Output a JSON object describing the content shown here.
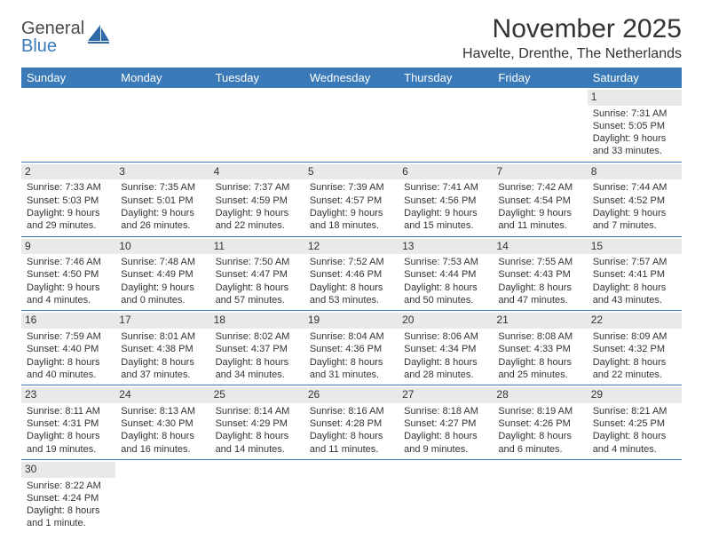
{
  "logo": {
    "text1": "General",
    "text2": "Blue"
  },
  "title": "November 2025",
  "location": "Havelte, Drenthe, The Netherlands",
  "colors": {
    "header_bg": "#3a7ab8",
    "header_text": "#ffffff",
    "daynum_bg": "#e9e9e9",
    "border": "#3a7ab8",
    "text": "#333333",
    "logo_gray": "#4a4a4a",
    "logo_blue": "#3a7ab8"
  },
  "daysOfWeek": [
    "Sunday",
    "Monday",
    "Tuesday",
    "Wednesday",
    "Thursday",
    "Friday",
    "Saturday"
  ],
  "weeks": [
    [
      null,
      null,
      null,
      null,
      null,
      null,
      {
        "n": "1",
        "sr": "Sunrise: 7:31 AM",
        "ss": "Sunset: 5:05 PM",
        "d1": "Daylight: 9 hours",
        "d2": "and 33 minutes."
      }
    ],
    [
      {
        "n": "2",
        "sr": "Sunrise: 7:33 AM",
        "ss": "Sunset: 5:03 PM",
        "d1": "Daylight: 9 hours",
        "d2": "and 29 minutes."
      },
      {
        "n": "3",
        "sr": "Sunrise: 7:35 AM",
        "ss": "Sunset: 5:01 PM",
        "d1": "Daylight: 9 hours",
        "d2": "and 26 minutes."
      },
      {
        "n": "4",
        "sr": "Sunrise: 7:37 AM",
        "ss": "Sunset: 4:59 PM",
        "d1": "Daylight: 9 hours",
        "d2": "and 22 minutes."
      },
      {
        "n": "5",
        "sr": "Sunrise: 7:39 AM",
        "ss": "Sunset: 4:57 PM",
        "d1": "Daylight: 9 hours",
        "d2": "and 18 minutes."
      },
      {
        "n": "6",
        "sr": "Sunrise: 7:41 AM",
        "ss": "Sunset: 4:56 PM",
        "d1": "Daylight: 9 hours",
        "d2": "and 15 minutes."
      },
      {
        "n": "7",
        "sr": "Sunrise: 7:42 AM",
        "ss": "Sunset: 4:54 PM",
        "d1": "Daylight: 9 hours",
        "d2": "and 11 minutes."
      },
      {
        "n": "8",
        "sr": "Sunrise: 7:44 AM",
        "ss": "Sunset: 4:52 PM",
        "d1": "Daylight: 9 hours",
        "d2": "and 7 minutes."
      }
    ],
    [
      {
        "n": "9",
        "sr": "Sunrise: 7:46 AM",
        "ss": "Sunset: 4:50 PM",
        "d1": "Daylight: 9 hours",
        "d2": "and 4 minutes."
      },
      {
        "n": "10",
        "sr": "Sunrise: 7:48 AM",
        "ss": "Sunset: 4:49 PM",
        "d1": "Daylight: 9 hours",
        "d2": "and 0 minutes."
      },
      {
        "n": "11",
        "sr": "Sunrise: 7:50 AM",
        "ss": "Sunset: 4:47 PM",
        "d1": "Daylight: 8 hours",
        "d2": "and 57 minutes."
      },
      {
        "n": "12",
        "sr": "Sunrise: 7:52 AM",
        "ss": "Sunset: 4:46 PM",
        "d1": "Daylight: 8 hours",
        "d2": "and 53 minutes."
      },
      {
        "n": "13",
        "sr": "Sunrise: 7:53 AM",
        "ss": "Sunset: 4:44 PM",
        "d1": "Daylight: 8 hours",
        "d2": "and 50 minutes."
      },
      {
        "n": "14",
        "sr": "Sunrise: 7:55 AM",
        "ss": "Sunset: 4:43 PM",
        "d1": "Daylight: 8 hours",
        "d2": "and 47 minutes."
      },
      {
        "n": "15",
        "sr": "Sunrise: 7:57 AM",
        "ss": "Sunset: 4:41 PM",
        "d1": "Daylight: 8 hours",
        "d2": "and 43 minutes."
      }
    ],
    [
      {
        "n": "16",
        "sr": "Sunrise: 7:59 AM",
        "ss": "Sunset: 4:40 PM",
        "d1": "Daylight: 8 hours",
        "d2": "and 40 minutes."
      },
      {
        "n": "17",
        "sr": "Sunrise: 8:01 AM",
        "ss": "Sunset: 4:38 PM",
        "d1": "Daylight: 8 hours",
        "d2": "and 37 minutes."
      },
      {
        "n": "18",
        "sr": "Sunrise: 8:02 AM",
        "ss": "Sunset: 4:37 PM",
        "d1": "Daylight: 8 hours",
        "d2": "and 34 minutes."
      },
      {
        "n": "19",
        "sr": "Sunrise: 8:04 AM",
        "ss": "Sunset: 4:36 PM",
        "d1": "Daylight: 8 hours",
        "d2": "and 31 minutes."
      },
      {
        "n": "20",
        "sr": "Sunrise: 8:06 AM",
        "ss": "Sunset: 4:34 PM",
        "d1": "Daylight: 8 hours",
        "d2": "and 28 minutes."
      },
      {
        "n": "21",
        "sr": "Sunrise: 8:08 AM",
        "ss": "Sunset: 4:33 PM",
        "d1": "Daylight: 8 hours",
        "d2": "and 25 minutes."
      },
      {
        "n": "22",
        "sr": "Sunrise: 8:09 AM",
        "ss": "Sunset: 4:32 PM",
        "d1": "Daylight: 8 hours",
        "d2": "and 22 minutes."
      }
    ],
    [
      {
        "n": "23",
        "sr": "Sunrise: 8:11 AM",
        "ss": "Sunset: 4:31 PM",
        "d1": "Daylight: 8 hours",
        "d2": "and 19 minutes."
      },
      {
        "n": "24",
        "sr": "Sunrise: 8:13 AM",
        "ss": "Sunset: 4:30 PM",
        "d1": "Daylight: 8 hours",
        "d2": "and 16 minutes."
      },
      {
        "n": "25",
        "sr": "Sunrise: 8:14 AM",
        "ss": "Sunset: 4:29 PM",
        "d1": "Daylight: 8 hours",
        "d2": "and 14 minutes."
      },
      {
        "n": "26",
        "sr": "Sunrise: 8:16 AM",
        "ss": "Sunset: 4:28 PM",
        "d1": "Daylight: 8 hours",
        "d2": "and 11 minutes."
      },
      {
        "n": "27",
        "sr": "Sunrise: 8:18 AM",
        "ss": "Sunset: 4:27 PM",
        "d1": "Daylight: 8 hours",
        "d2": "and 9 minutes."
      },
      {
        "n": "28",
        "sr": "Sunrise: 8:19 AM",
        "ss": "Sunset: 4:26 PM",
        "d1": "Daylight: 8 hours",
        "d2": "and 6 minutes."
      },
      {
        "n": "29",
        "sr": "Sunrise: 8:21 AM",
        "ss": "Sunset: 4:25 PM",
        "d1": "Daylight: 8 hours",
        "d2": "and 4 minutes."
      }
    ],
    [
      {
        "n": "30",
        "sr": "Sunrise: 8:22 AM",
        "ss": "Sunset: 4:24 PM",
        "d1": "Daylight: 8 hours",
        "d2": "and 1 minute."
      },
      null,
      null,
      null,
      null,
      null,
      null
    ]
  ]
}
